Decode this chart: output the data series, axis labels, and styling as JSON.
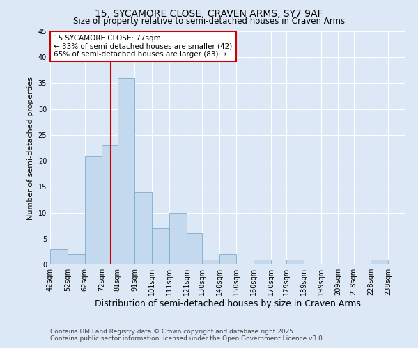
{
  "title_line1": "15, SYCAMORE CLOSE, CRAVEN ARMS, SY7 9AF",
  "title_line2": "Size of property relative to semi-detached houses in Craven Arms",
  "xlabel": "Distribution of semi-detached houses by size in Craven Arms",
  "ylabel": "Number of semi-detached properties",
  "bin_labels": [
    "42sqm",
    "52sqm",
    "62sqm",
    "72sqm",
    "81sqm",
    "91sqm",
    "101sqm",
    "111sqm",
    "121sqm",
    "130sqm",
    "140sqm",
    "150sqm",
    "160sqm",
    "170sqm",
    "179sqm",
    "189sqm",
    "199sqm",
    "209sqm",
    "218sqm",
    "228sqm",
    "238sqm"
  ],
  "bin_edges": [
    42,
    52,
    62,
    72,
    81,
    91,
    101,
    111,
    121,
    130,
    140,
    150,
    160,
    170,
    179,
    189,
    199,
    209,
    218,
    228,
    238,
    248
  ],
  "values": [
    3,
    2,
    21,
    23,
    36,
    14,
    7,
    10,
    6,
    1,
    2,
    0,
    1,
    0,
    1,
    0,
    0,
    0,
    0,
    1,
    0
  ],
  "bar_color": "#c5d9ee",
  "bar_edgecolor": "#7aadcf",
  "redline_x": 77,
  "redline_color": "#cc0000",
  "annotation_title": "15 SYCAMORE CLOSE: 77sqm",
  "annotation_line2": "← 33% of semi-detached houses are smaller (42)",
  "annotation_line3": "65% of semi-detached houses are larger (83) →",
  "annotation_box_facecolor": "#ffffff",
  "annotation_box_edgecolor": "#cc0000",
  "ylim": [
    0,
    45
  ],
  "yticks": [
    0,
    5,
    10,
    15,
    20,
    25,
    30,
    35,
    40,
    45
  ],
  "background_color": "#dce8f5",
  "grid_color": "#ffffff",
  "footer_line1": "Contains HM Land Registry data © Crown copyright and database right 2025.",
  "footer_line2": "Contains public sector information licensed under the Open Government Licence v3.0.",
  "title_fontsize": 10,
  "subtitle_fontsize": 8.5,
  "xlabel_fontsize": 9,
  "ylabel_fontsize": 8,
  "tick_fontsize": 7,
  "annotation_fontsize": 7.5,
  "footer_fontsize": 6.5
}
